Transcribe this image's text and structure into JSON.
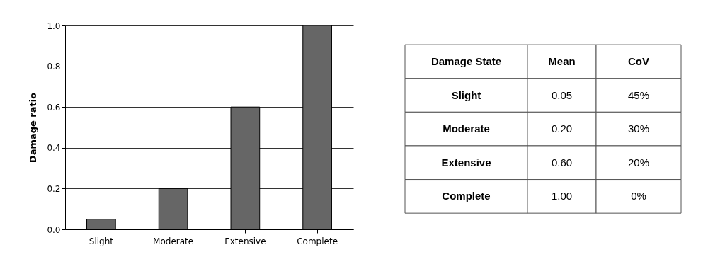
{
  "chart_data": [
    {
      "type": "bar",
      "ylabel": "Damage ratio",
      "categories": [
        "Slight",
        "Moderate",
        "Extensive",
        "Complete"
      ],
      "values": [
        0.05,
        0.2,
        0.6,
        1.0
      ],
      "color": "#666666",
      "ylim": [
        0,
        1.0
      ],
      "yticks": [
        {
          "value": 0,
          "label": "0.0"
        },
        {
          "value": 0.2,
          "label": "0.2"
        },
        {
          "value": 0.4,
          "label": "0.4"
        },
        {
          "value": 0.6,
          "label": "0.6"
        },
        {
          "value": 0.8,
          "label": "0.8"
        },
        {
          "value": 1.0,
          "label": "1.0"
        }
      ],
      "grid": "y"
    },
    {
      "type": "other",
      "categories": [
        "Damage State",
        "Mean",
        "CoV"
      ],
      "annotations": [
        "Slight",
        "0.05",
        "45%",
        "Moderate",
        "0.20",
        "30%",
        "Extensive",
        "0.60",
        "20%",
        "Complete",
        "1.00",
        "0%"
      ]
    }
  ]
}
